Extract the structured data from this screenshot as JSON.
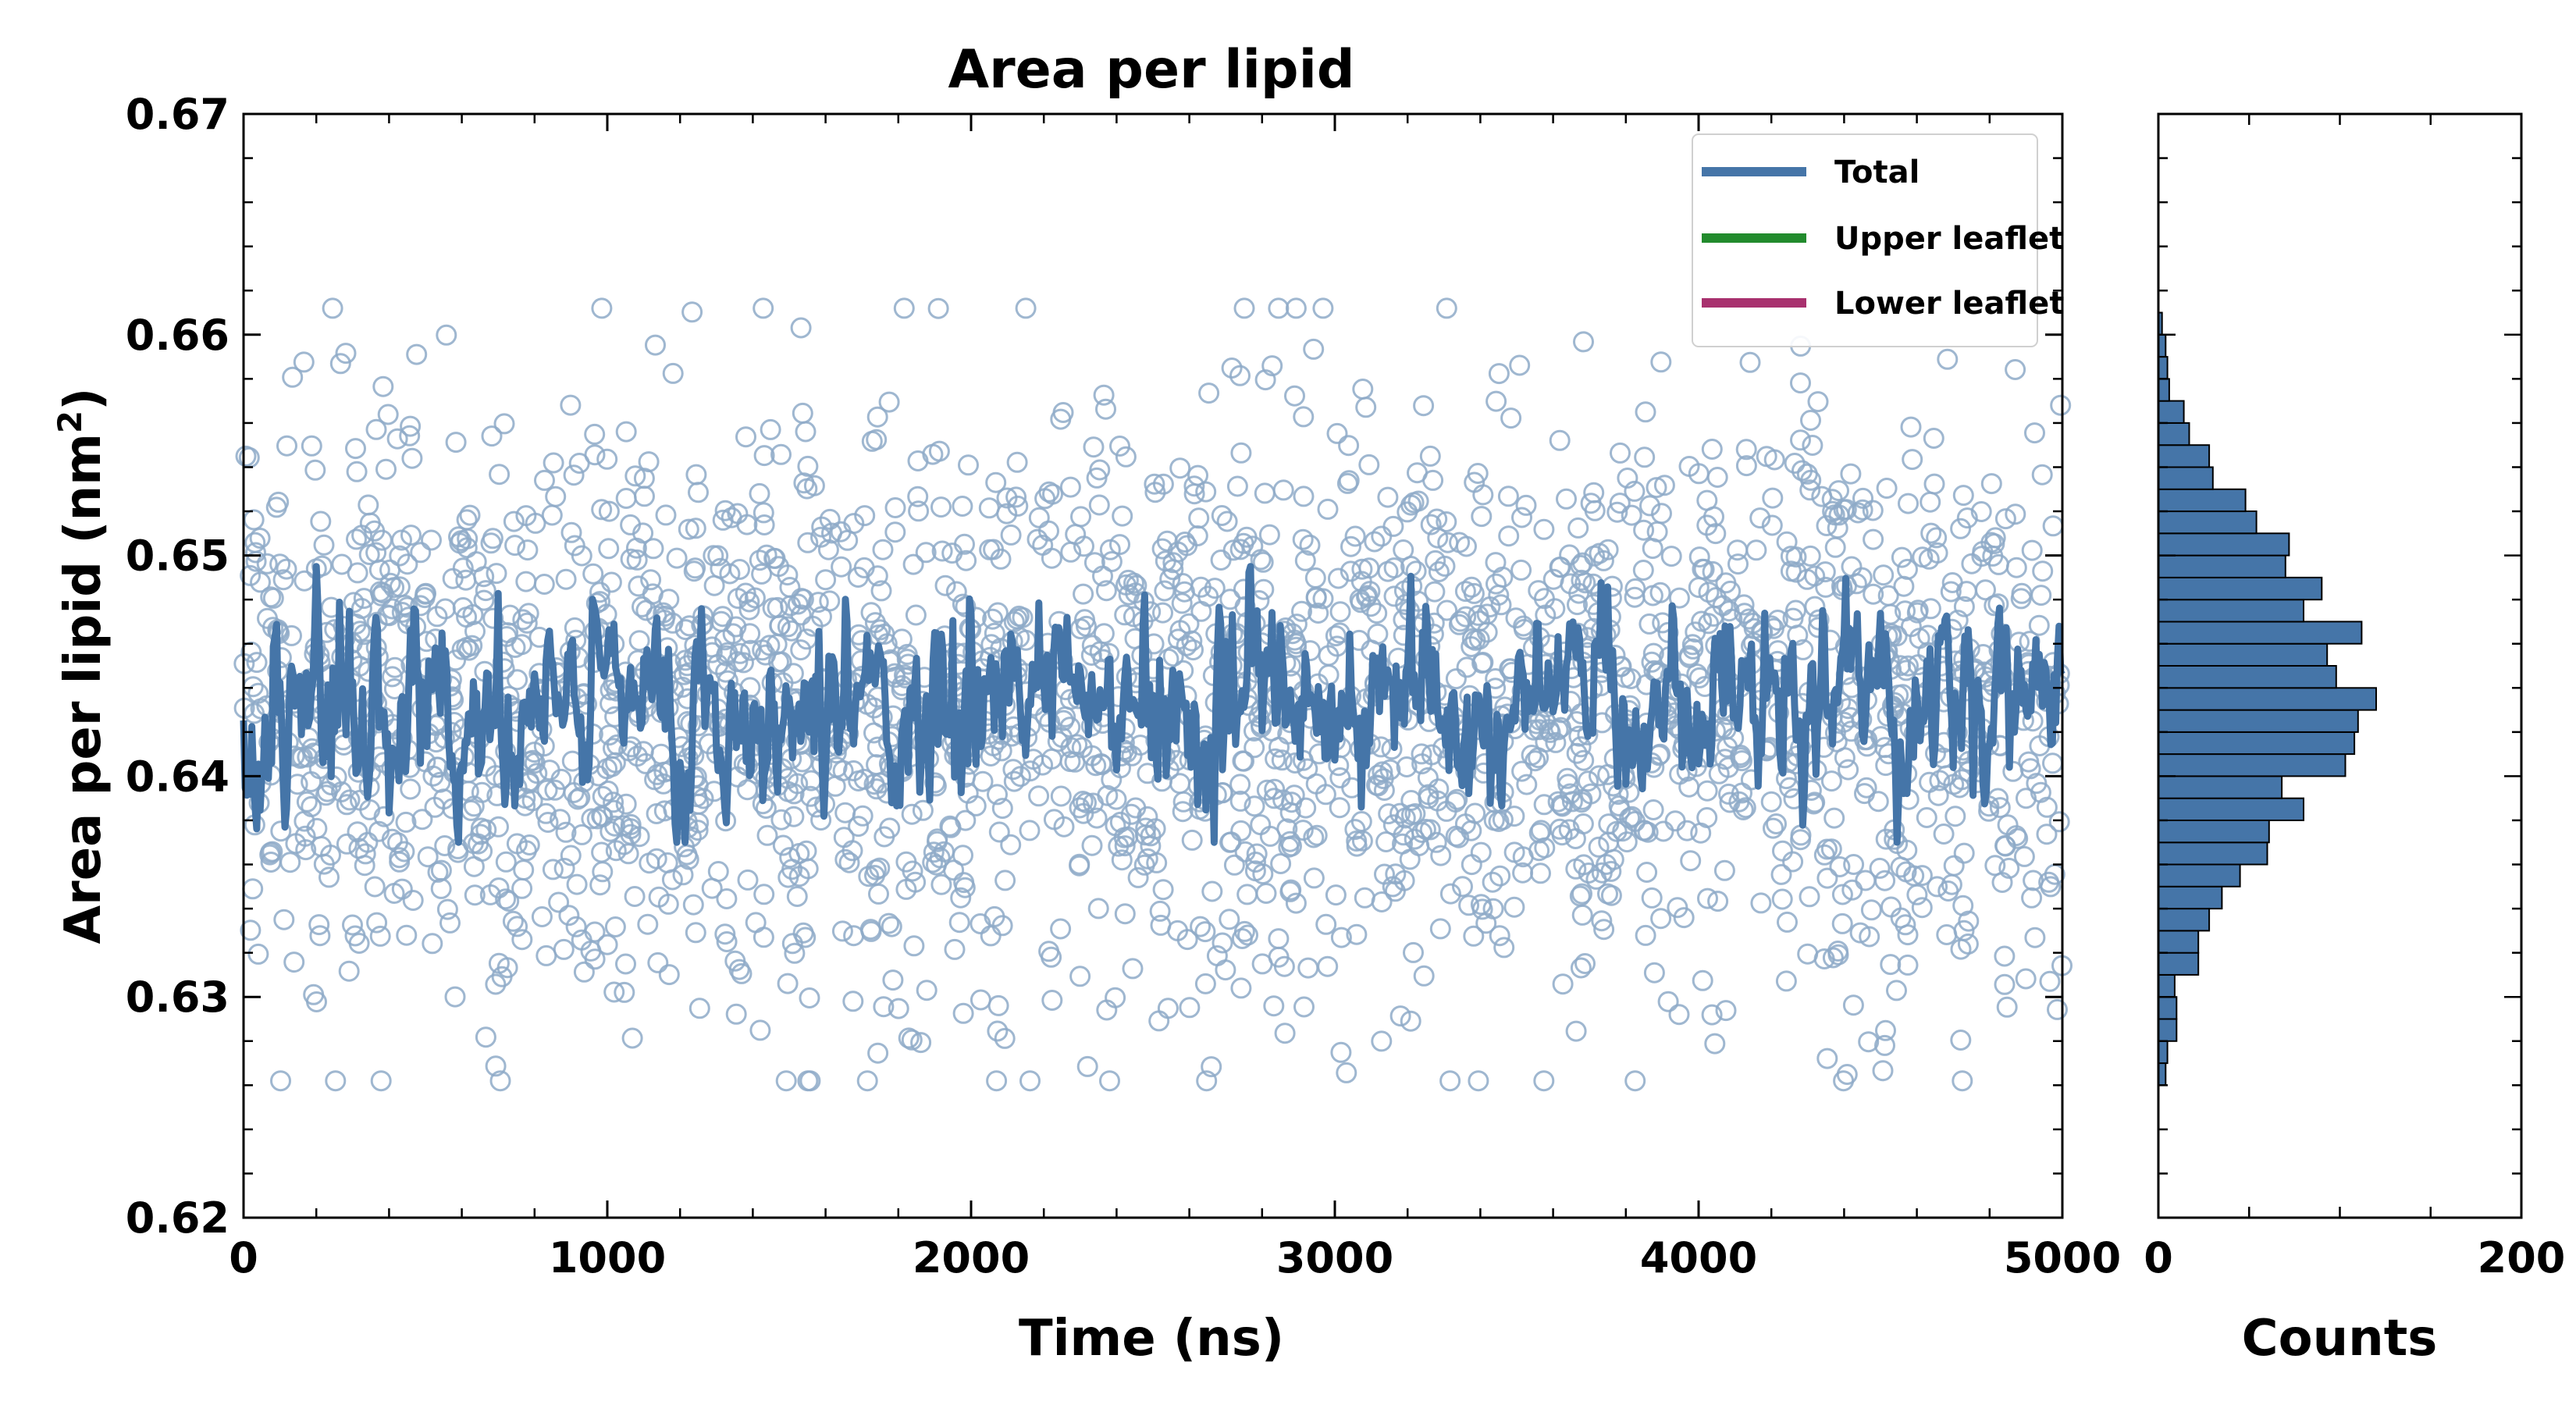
{
  "chart_data": [
    {
      "type": "scatter",
      "title": "Area per lipid",
      "xlabel": "Time (ns)",
      "ylabel_main": "Area per lipid (nm",
      "ylabel_sup": "2",
      "ylabel_close": ")",
      "xlim": [
        0,
        5000
      ],
      "ylim": [
        0.62,
        0.67
      ],
      "x_ticks": [
        0,
        1000,
        2000,
        3000,
        4000,
        5000
      ],
      "x_tick_labels": [
        "0",
        "1000",
        "2000",
        "3000",
        "4000",
        "5000"
      ],
      "y_ticks": [
        0.62,
        0.63,
        0.64,
        0.65,
        0.66,
        0.67
      ],
      "y_tick_labels": [
        "0.62",
        "0.63",
        "0.64",
        "0.65",
        "0.66",
        "0.67"
      ],
      "grid": false,
      "legend_placement": "top-right",
      "legend": [
        {
          "label": "Total",
          "color": "#4575a8"
        },
        {
          "label": "Upper leaflet",
          "color": "#228b2d"
        },
        {
          "label": "Lower leaflet",
          "color": "#a8306e"
        }
      ],
      "scatter_series": {
        "color": "#8eaac8",
        "marker": "open-circle",
        "n_points": 2500,
        "x_range": [
          0,
          5000
        ],
        "mean": 0.6432,
        "std": 0.0065
      },
      "line_series": {
        "name": "Total",
        "color": "#4575a8",
        "mean": 0.6432,
        "min_approx": 0.637,
        "max_approx": 0.6495
      }
    },
    {
      "type": "bar",
      "orientation": "horizontal",
      "xlabel": "Counts",
      "xlim": [
        0,
        200
      ],
      "x_ticks": [
        0,
        200
      ],
      "x_tick_labels": [
        "0",
        "200"
      ],
      "ylim": [
        0.62,
        0.67
      ],
      "bar_color": "#4575a8",
      "bin_width": 0.001,
      "bins": [
        {
          "y0": 0.626,
          "count": 4
        },
        {
          "y0": 0.627,
          "count": 5
        },
        {
          "y0": 0.628,
          "count": 10
        },
        {
          "y0": 0.629,
          "count": 10
        },
        {
          "y0": 0.63,
          "count": 9
        },
        {
          "y0": 0.631,
          "count": 22
        },
        {
          "y0": 0.632,
          "count": 22
        },
        {
          "y0": 0.633,
          "count": 28
        },
        {
          "y0": 0.634,
          "count": 35
        },
        {
          "y0": 0.635,
          "count": 45
        },
        {
          "y0": 0.636,
          "count": 60
        },
        {
          "y0": 0.637,
          "count": 61
        },
        {
          "y0": 0.638,
          "count": 80
        },
        {
          "y0": 0.639,
          "count": 68
        },
        {
          "y0": 0.64,
          "count": 103
        },
        {
          "y0": 0.641,
          "count": 108
        },
        {
          "y0": 0.642,
          "count": 110
        },
        {
          "y0": 0.643,
          "count": 120
        },
        {
          "y0": 0.644,
          "count": 98
        },
        {
          "y0": 0.645,
          "count": 93
        },
        {
          "y0": 0.646,
          "count": 112
        },
        {
          "y0": 0.647,
          "count": 80
        },
        {
          "y0": 0.648,
          "count": 90
        },
        {
          "y0": 0.649,
          "count": 70
        },
        {
          "y0": 0.65,
          "count": 72
        },
        {
          "y0": 0.651,
          "count": 54
        },
        {
          "y0": 0.652,
          "count": 48
        },
        {
          "y0": 0.653,
          "count": 30
        },
        {
          "y0": 0.654,
          "count": 28
        },
        {
          "y0": 0.655,
          "count": 17
        },
        {
          "y0": 0.656,
          "count": 14
        },
        {
          "y0": 0.657,
          "count": 6
        },
        {
          "y0": 0.658,
          "count": 5
        },
        {
          "y0": 0.659,
          "count": 4
        },
        {
          "y0": 0.66,
          "count": 2
        }
      ]
    }
  ]
}
